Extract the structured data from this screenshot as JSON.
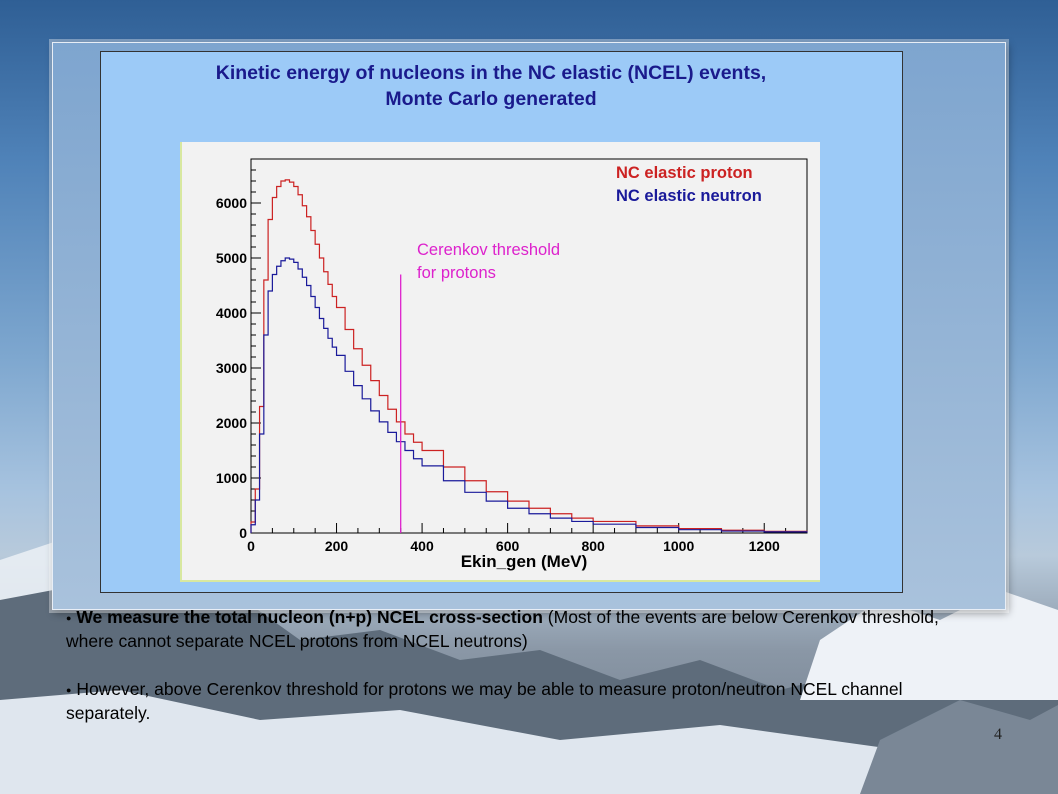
{
  "figure": {
    "title_line1": "Kinetic energy of nucleons in the NC elastic (NCEL) events,",
    "title_line2": "Monte Carlo generated"
  },
  "chart_data": {
    "type": "line",
    "xlabel": "Ekin_gen (MeV)",
    "ylabel": "",
    "xlim": [
      0,
      1300
    ],
    "ylim": [
      0,
      6800
    ],
    "x_ticks": [
      0,
      200,
      400,
      600,
      800,
      1000,
      1200
    ],
    "y_ticks": [
      0,
      1000,
      2000,
      3000,
      4000,
      5000,
      6000
    ],
    "grid": false,
    "legend_position": "top-right",
    "x": [
      0,
      10,
      20,
      30,
      40,
      50,
      60,
      70,
      80,
      90,
      100,
      110,
      120,
      130,
      140,
      150,
      160,
      170,
      180,
      190,
      200,
      220,
      240,
      260,
      280,
      300,
      320,
      340,
      360,
      380,
      400,
      450,
      500,
      550,
      600,
      650,
      700,
      750,
      800,
      900,
      1000,
      1100,
      1200,
      1300
    ],
    "series": [
      {
        "name": "NC elastic proton",
        "color": "#cc2222",
        "values": [
          200,
          800,
          2300,
          4600,
          5700,
          6100,
          6300,
          6400,
          6420,
          6380,
          6300,
          6150,
          5950,
          5750,
          5500,
          5250,
          5000,
          4750,
          4520,
          4300,
          4100,
          3700,
          3350,
          3050,
          2770,
          2500,
          2250,
          2020,
          1800,
          1650,
          1500,
          1200,
          950,
          750,
          580,
          450,
          350,
          270,
          210,
          130,
          80,
          50,
          30,
          15
        ]
      },
      {
        "name": "NC elastic neutron",
        "color": "#1a1a9a",
        "values": [
          150,
          600,
          1800,
          3600,
          4400,
          4700,
          4850,
          4950,
          5000,
          4980,
          4920,
          4800,
          4650,
          4500,
          4300,
          4100,
          3900,
          3720,
          3540,
          3380,
          3230,
          2940,
          2680,
          2440,
          2220,
          2020,
          1830,
          1660,
          1500,
          1350,
          1220,
          950,
          740,
          580,
          450,
          350,
          270,
          210,
          160,
          100,
          60,
          35,
          20,
          10
        ]
      }
    ],
    "annotations": [
      {
        "text_line1": "Cerenkov threshold",
        "text_line2": "for protons",
        "x": 350,
        "color": "#dd22cc"
      }
    ]
  },
  "bullets": [
    {
      "bold": "We measure the total nucleon (n+p) NCEL cross-section",
      "text": " (Most of the events are below Cerenkov threshold, where cannot separate NCEL protons from NCEL neutrons)"
    },
    {
      "bold": "",
      "text": "However, above Cerenkov threshold for protons we may be able to measure proton/neutron NCEL channel separately."
    }
  ],
  "page_number": "4"
}
